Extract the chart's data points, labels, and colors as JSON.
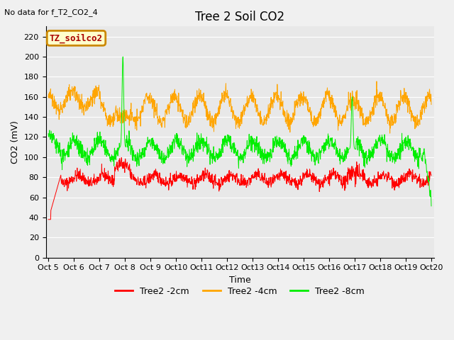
{
  "title": "Tree 2 Soil CO2",
  "subtitle": "No data for f_T2_CO2_4",
  "ylabel": "CO2 (mV)",
  "xlabel": "Time",
  "ylim": [
    0,
    230
  ],
  "yticks": [
    0,
    20,
    40,
    60,
    80,
    100,
    120,
    140,
    160,
    180,
    200,
    220
  ],
  "xtick_labels": [
    "Oct 5",
    "Oct 6",
    "Oct 7",
    "Oct 8",
    "Oct 9",
    "Oct 10",
    "Oct 11",
    "Oct 12",
    "Oct 13",
    "Oct 14",
    "Oct 15",
    "Oct 16",
    "Oct 17",
    "Oct 18",
    "Oct 19",
    "Oct 20"
  ],
  "colors": {
    "red": "#FF0000",
    "orange": "#FFA500",
    "green": "#00EE00"
  },
  "legend_labels": [
    "Tree2 -2cm",
    "Tree2 -4cm",
    "Tree2 -8cm"
  ],
  "box_label": "TZ_soilco2",
  "box_facecolor": "#FFFFCC",
  "box_edgecolor": "#CC8800",
  "bg_color": "#E8E8E8",
  "grid_color": "#FFFFFF",
  "title_fontsize": 12,
  "label_fontsize": 9,
  "tick_fontsize": 8
}
